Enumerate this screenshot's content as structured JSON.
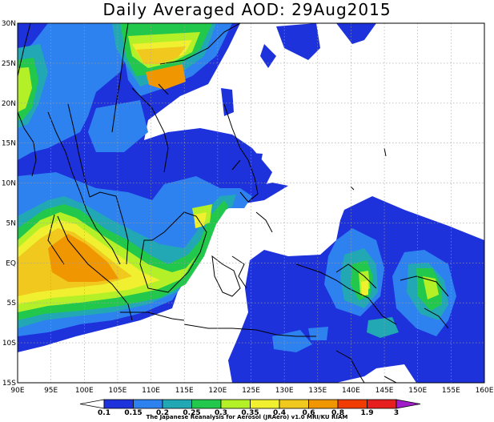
{
  "title": "Daily Averaged AOD: 29Aug2015",
  "footer_credit": "The Japanese Reanalysis for Aerosol (JRAero) v1.0 MRI/KU RIAM",
  "axes": {
    "lon_ticks": [
      "90E",
      "95E",
      "100E",
      "105E",
      "110E",
      "115E",
      "120E",
      "125E",
      "130E",
      "135E",
      "140E",
      "145E",
      "150E",
      "155E",
      "160E"
    ],
    "lat_ticks": [
      "30N",
      "25N",
      "20N",
      "15N",
      "10N",
      "5N",
      "EQ",
      "5S",
      "10S",
      "15S"
    ],
    "lon_range": [
      90,
      160
    ],
    "lat_range": [
      -15,
      30
    ]
  },
  "colorbar": {
    "labels": [
      "0.1",
      "0.15",
      "0.2",
      "0.25",
      "0.3",
      "0.35",
      "0.4",
      "0.6",
      "0.8",
      "1.9",
      "3"
    ],
    "colors": [
      "#ffffff",
      "#1e32dc",
      "#2e82f0",
      "#22a8b4",
      "#22c84c",
      "#b4f028",
      "#f0f030",
      "#f0c81e",
      "#f09600",
      "#f03c00",
      "#e61e1e",
      "#a01ec8"
    ]
  },
  "chart_data": {
    "type": "heatmap",
    "title": "Daily Averaged AOD: 29Aug2015",
    "xlim": [
      90,
      160
    ],
    "ylim": [
      -15,
      30
    ],
    "grid": true,
    "levels": [
      0.1,
      0.15,
      0.2,
      0.25,
      0.3,
      0.35,
      0.4,
      0.6,
      0.8,
      1.9,
      3
    ],
    "aerosol_regions": [
      {
        "region": "Sumatra / western Indian Ocean",
        "lon": [
          90,
          106
        ],
        "lat": [
          -10,
          8
        ],
        "peak_aod": 0.6
      },
      {
        "region": "Northern Bay of Bengal / Myanmar coast",
        "lon": [
          90,
          97
        ],
        "lat": [
          15,
          28
        ],
        "peak_aod": 0.35
      },
      {
        "region": "South China (north of 22N)",
        "lon": [
          104,
          120
        ],
        "lat": [
          22,
          30
        ],
        "peak_aod": 0.6
      },
      {
        "region": "Borneo",
        "lon": [
          108,
          117
        ],
        "lat": [
          -4,
          6
        ],
        "peak_aod": 0.4
      },
      {
        "region": "New Guinea",
        "lon": [
          135,
          146
        ],
        "lat": [
          -9,
          1
        ],
        "peak_aod": 0.4
      },
      {
        "region": "New Britain / Solomon Sea",
        "lon": [
          148,
          157
        ],
        "lat": [
          -10,
          -1
        ],
        "peak_aod": 0.35
      }
    ]
  }
}
